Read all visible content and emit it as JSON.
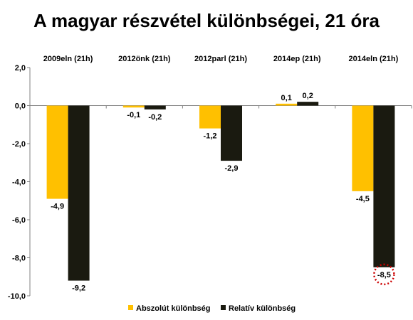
{
  "chart_data": {
    "type": "bar",
    "title": "A magyar részvétel különbségei, 21 óra",
    "categories": [
      "2009eln (21h)",
      "2012önk (21h)",
      "2012parl (21h)",
      "2014ep (21h)",
      "2014eln (21h)"
    ],
    "series": [
      {
        "name": "Abszolút különbség",
        "color": "#FFC000",
        "values": [
          -4.9,
          -0.1,
          -1.2,
          0.1,
          -4.5
        ],
        "labels": [
          "-4,9",
          "-0,1",
          "-1,2",
          "0,1",
          "-4,5"
        ]
      },
      {
        "name": "Relatív különbség",
        "color": "#1A1A10",
        "values": [
          -9.2,
          -0.2,
          -2.9,
          0.2,
          -8.5
        ],
        "labels": [
          "-9,2",
          "-0,2",
          "-2,9",
          "0,2",
          "-8,5"
        ]
      }
    ],
    "ylim": [
      -10,
      2
    ],
    "yticks": [
      2,
      0,
      -2,
      -4,
      -6,
      -8,
      -10
    ],
    "ytick_labels": [
      "2,0",
      "0,0",
      "-2,0",
      "-4,0",
      "-6,0",
      "-8,0",
      "-10,0"
    ],
    "category_position": "top",
    "legend_position": "bottom",
    "grid": false,
    "highlight": {
      "series": 1,
      "category": 4,
      "color": "#CC0000"
    }
  }
}
